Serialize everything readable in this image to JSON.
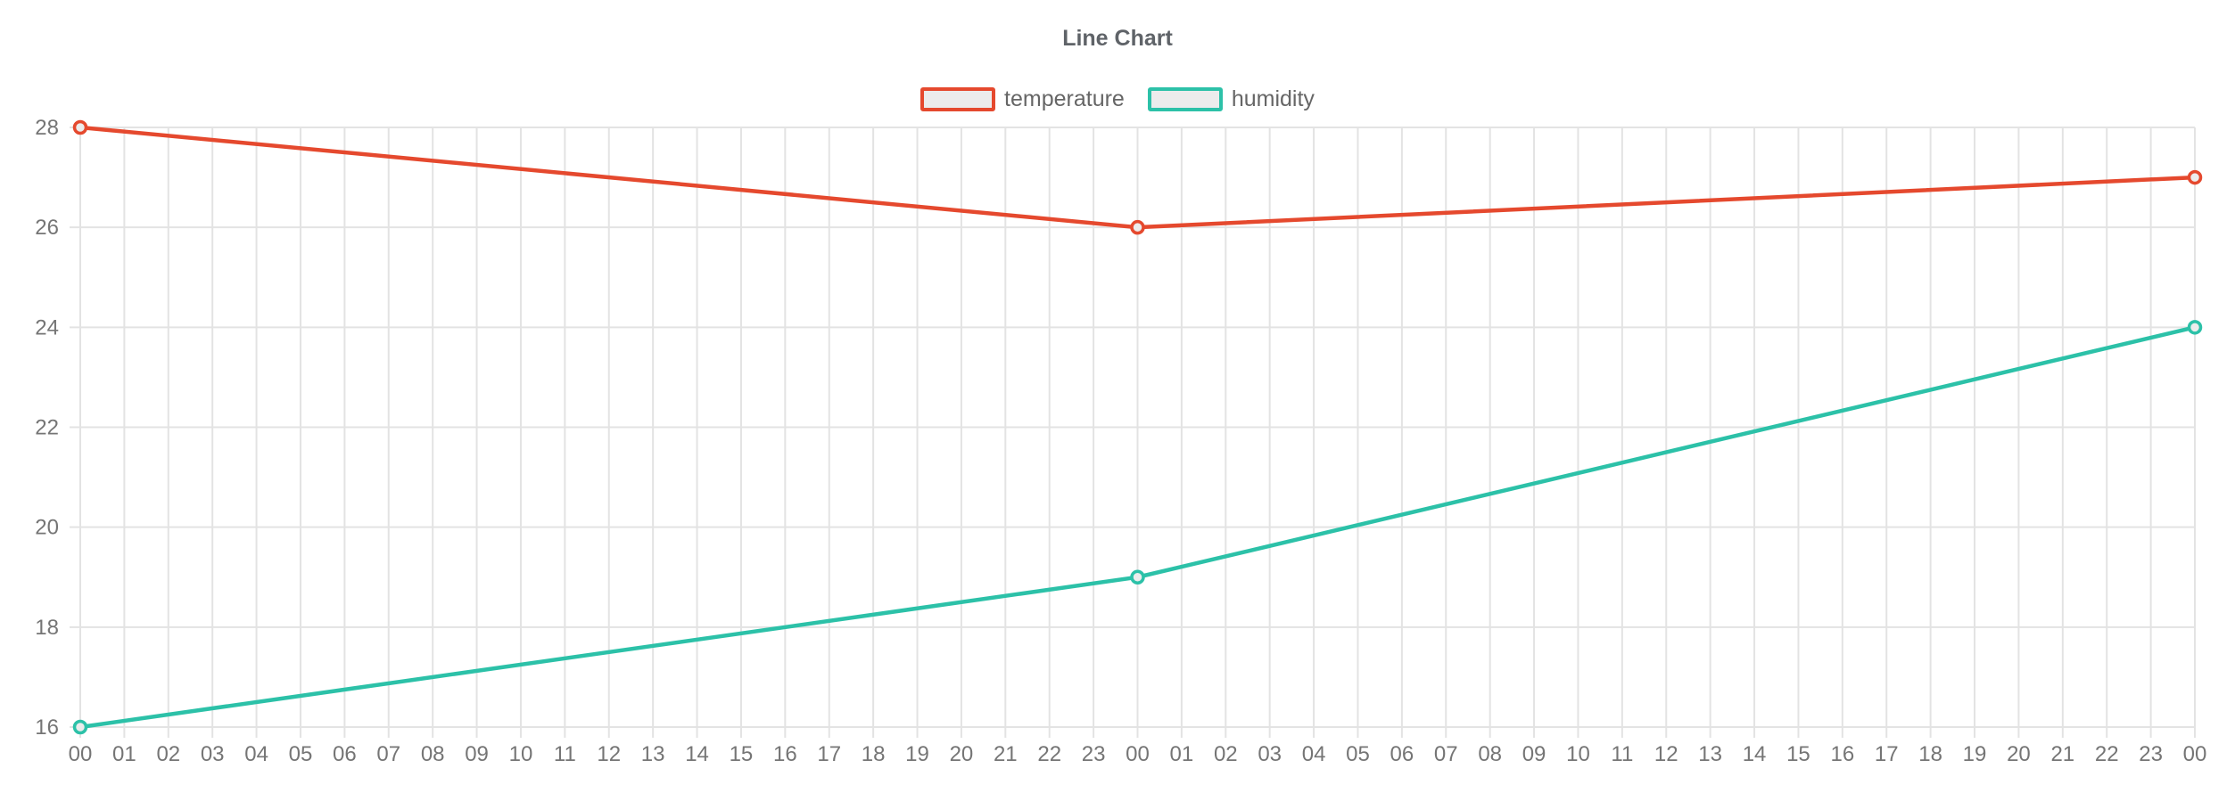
{
  "chart_data": {
    "type": "line",
    "title": "Line Chart",
    "legend_position": "top",
    "grid": true,
    "background": "#ffffff",
    "grid_color": "#e3e3e3",
    "tick_text_color": "#757575",
    "swatch_fill": "#ececec",
    "point_fill": "#ececec",
    "x_axis": {
      "tick_labels": [
        "00",
        "01",
        "02",
        "03",
        "04",
        "05",
        "06",
        "07",
        "08",
        "09",
        "10",
        "11",
        "12",
        "13",
        "14",
        "15",
        "16",
        "17",
        "18",
        "19",
        "20",
        "21",
        "22",
        "23",
        "00",
        "01",
        "02",
        "03",
        "04",
        "05",
        "06",
        "07",
        "08",
        "09",
        "10",
        "11",
        "12",
        "13",
        "14",
        "15",
        "16",
        "17",
        "18",
        "19",
        "20",
        "21",
        "22",
        "23",
        "00"
      ]
    },
    "y_axis": {
      "ticks": [
        16,
        18,
        20,
        22,
        24,
        26,
        28
      ],
      "min": 16,
      "max": 28
    },
    "series": [
      {
        "name": "temperature",
        "color": "#e5492e",
        "x_indices": [
          0,
          24,
          48
        ],
        "values": [
          28,
          26,
          27
        ]
      },
      {
        "name": "humidity",
        "color": "#2cc1a8",
        "x_indices": [
          0,
          24,
          48
        ],
        "values": [
          16,
          19,
          24
        ]
      }
    ]
  }
}
